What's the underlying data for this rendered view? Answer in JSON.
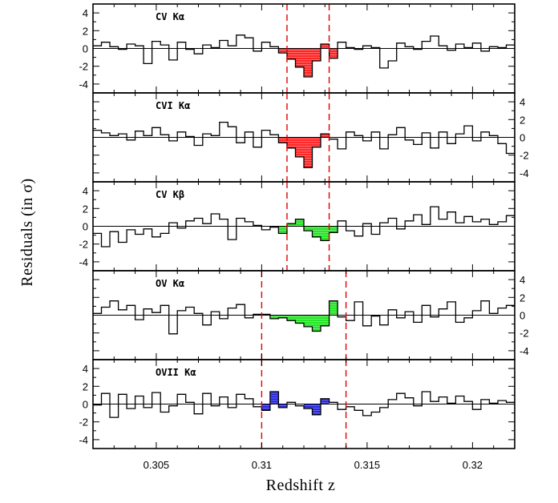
{
  "chart_data": {
    "type": "step",
    "xlabel": "Redshift z",
    "ylabel": "Residuals (in σ)",
    "xlim": [
      0.302,
      0.322
    ],
    "ylim": [
      -5,
      5
    ],
    "x_ticks": [
      "0.305",
      "0.31",
      "0.315",
      "0.32"
    ],
    "y_ticks": [
      "4",
      "2",
      "0",
      "-2",
      "-4"
    ],
    "grid": false,
    "colors": {
      "red": "#ff0000",
      "green": "#00e000",
      "blue": "#0000dd",
      "dashed": "#e00000",
      "line": "#000000"
    },
    "panels": [
      {
        "title": "CV Kα",
        "y_axis_side": "left",
        "fill_color": "#ff0000",
        "dashed_lines": [
          0.3112,
          0.3132
        ],
        "x0": 0.302,
        "dx": 0.0004,
        "values": [
          0.3,
          0.7,
          0.2,
          -0.1,
          0.5,
          0.3,
          -1.7,
          0.8,
          0.4,
          -1.3,
          0.7,
          -0.1,
          -0.6,
          0.4,
          0.1,
          0.9,
          0.3,
          1.5,
          1.2,
          -0.3,
          0.7,
          0.2,
          -0.5,
          -1.2,
          -2.1,
          -3.2,
          -1.4,
          0.5,
          -1.1,
          0.7,
          0.1,
          -0.1,
          0.3,
          0.1,
          -2.2,
          -1.4,
          0.6,
          0.2,
          -0.1,
          0.8,
          1.4,
          0.3,
          -0.2,
          0.5,
          0.1,
          0.6,
          -0.3,
          0.2,
          0.1,
          0.4
        ],
        "filled": [
          false,
          false,
          false,
          false,
          false,
          false,
          false,
          false,
          false,
          false,
          false,
          false,
          false,
          false,
          false,
          false,
          false,
          false,
          false,
          false,
          false,
          false,
          true,
          true,
          true,
          true,
          true,
          true,
          true,
          false,
          false,
          false,
          false,
          false,
          false,
          false,
          false,
          false,
          false,
          false,
          false,
          false,
          false,
          false,
          false,
          false,
          false,
          false,
          false,
          false
        ]
      },
      {
        "title": "CVI Kα",
        "y_axis_side": "right",
        "fill_color": "#ff0000",
        "dashed_lines": [
          0.3112,
          0.3132
        ],
        "x0": 0.302,
        "dx": 0.0004,
        "values": [
          0.8,
          0.5,
          0.2,
          0.4,
          -0.3,
          0.7,
          0.2,
          1.1,
          0.3,
          -0.4,
          0.6,
          0.1,
          -0.9,
          0.4,
          0.2,
          1.7,
          1.2,
          -0.6,
          0.6,
          -1.1,
          0.8,
          0.3,
          -0.6,
          -1.2,
          -2.2,
          -3.4,
          -1.1,
          0.4,
          -0.2,
          -1.3,
          0.6,
          0.2,
          -0.4,
          0.6,
          -1.3,
          0.3,
          1.1,
          -0.3,
          -0.8,
          0.5,
          -1.2,
          0.6,
          -0.7,
          0.4,
          1.3,
          -0.4,
          0.6,
          0.2,
          -0.7,
          -1.8
        ],
        "filled": [
          false,
          false,
          false,
          false,
          false,
          false,
          false,
          false,
          false,
          false,
          false,
          false,
          false,
          false,
          false,
          false,
          false,
          false,
          false,
          false,
          false,
          false,
          true,
          true,
          true,
          true,
          true,
          true,
          false,
          false,
          false,
          false,
          false,
          false,
          false,
          false,
          false,
          false,
          false,
          false,
          false,
          false,
          false,
          false,
          false,
          false,
          false,
          false,
          false,
          false
        ]
      },
      {
        "title": "CV Kβ",
        "y_axis_side": "left",
        "fill_color": "#00e000",
        "dashed_lines": [
          0.3112,
          0.3132
        ],
        "x0": 0.302,
        "dx": 0.0004,
        "values": [
          -0.8,
          -2.3,
          -0.6,
          -1.8,
          -0.4,
          -0.9,
          -0.3,
          -1.2,
          -0.8,
          0.4,
          -0.2,
          0.6,
          0.9,
          0.3,
          1.4,
          0.8,
          -1.5,
          0.9,
          0.5,
          0.1,
          -0.4,
          -0.1,
          -0.8,
          0.3,
          0.8,
          -0.5,
          -1.2,
          -1.6,
          -0.7,
          0.6,
          -0.5,
          -1.1,
          0.3,
          -0.9,
          0.4,
          0.9,
          -0.3,
          0.6,
          1.3,
          0.2,
          2.2,
          0.8,
          1.6,
          0.4,
          1.1,
          0.5,
          0.8,
          0.2,
          0.5,
          1.2
        ],
        "filled": [
          false,
          false,
          false,
          false,
          false,
          false,
          false,
          false,
          false,
          false,
          false,
          false,
          false,
          false,
          false,
          false,
          false,
          false,
          false,
          false,
          false,
          false,
          true,
          true,
          true,
          true,
          true,
          true,
          true,
          false,
          false,
          false,
          false,
          false,
          false,
          false,
          false,
          false,
          false,
          false,
          false,
          false,
          false,
          false,
          false,
          false,
          false,
          false,
          false,
          false
        ]
      },
      {
        "title": "OV Kα",
        "y_axis_side": "right",
        "fill_color": "#00e000",
        "dashed_lines": [
          0.31,
          0.314
        ],
        "x0": 0.302,
        "dx": 0.0004,
        "values": [
          0.2,
          0.9,
          1.6,
          0.6,
          1.1,
          -0.5,
          0.7,
          0.3,
          1.1,
          -2.1,
          0.5,
          0.9,
          0.2,
          -1.1,
          0.4,
          -0.4,
          0.8,
          1.2,
          -0.3,
          0.1,
          0.1,
          -0.4,
          -0.3,
          -0.6,
          -0.9,
          -1.3,
          -1.8,
          -1.2,
          1.6,
          -0.2,
          -0.6,
          1.5,
          -1.2,
          -0.1,
          -1.1,
          0.6,
          -0.3,
          0.4,
          -0.8,
          1.1,
          -0.2,
          0.7,
          1.5,
          -0.8,
          -0.3,
          0.5,
          1.6,
          0.2,
          0.8,
          1.1
        ],
        "filled": [
          false,
          false,
          false,
          false,
          false,
          false,
          false,
          false,
          false,
          false,
          false,
          false,
          false,
          false,
          false,
          false,
          false,
          false,
          false,
          false,
          true,
          true,
          true,
          true,
          true,
          true,
          true,
          true,
          true,
          false,
          false,
          false,
          false,
          false,
          false,
          false,
          false,
          false,
          false,
          false,
          false,
          false,
          false,
          false,
          false,
          false,
          false,
          false,
          false,
          false
        ]
      },
      {
        "title": "OVII Kα",
        "y_axis_side": "left",
        "fill_color": "#0000dd",
        "dashed_lines": [
          0.31,
          0.314
        ],
        "x0": 0.302,
        "dx": 0.0004,
        "values": [
          -0.1,
          1.2,
          -1.5,
          1.1,
          -0.5,
          0.9,
          -0.4,
          1.3,
          -0.9,
          -0.2,
          1.1,
          0.2,
          -1.1,
          1.2,
          -0.2,
          0.8,
          -0.4,
          1.1,
          0.6,
          -0.3,
          -0.7,
          1.4,
          -0.4,
          0.2,
          -0.2,
          -0.5,
          -1.2,
          0.6,
          0.2,
          -0.6,
          -0.3,
          -0.7,
          -1.3,
          -0.9,
          -0.4,
          0.5,
          1.2,
          0.7,
          -0.2,
          1.4,
          0.3,
          0.8,
          0.1,
          0.9,
          0.3,
          -0.6,
          0.5,
          0.1,
          0.4,
          0.2
        ],
        "filled": [
          false,
          false,
          false,
          false,
          false,
          false,
          false,
          false,
          false,
          false,
          false,
          false,
          false,
          false,
          false,
          false,
          false,
          false,
          false,
          false,
          true,
          true,
          true,
          false,
          false,
          true,
          true,
          true,
          false,
          false,
          false,
          false,
          false,
          false,
          false,
          false,
          false,
          false,
          false,
          false,
          false,
          false,
          false,
          false,
          false,
          false,
          false,
          false,
          false,
          false
        ]
      }
    ]
  }
}
